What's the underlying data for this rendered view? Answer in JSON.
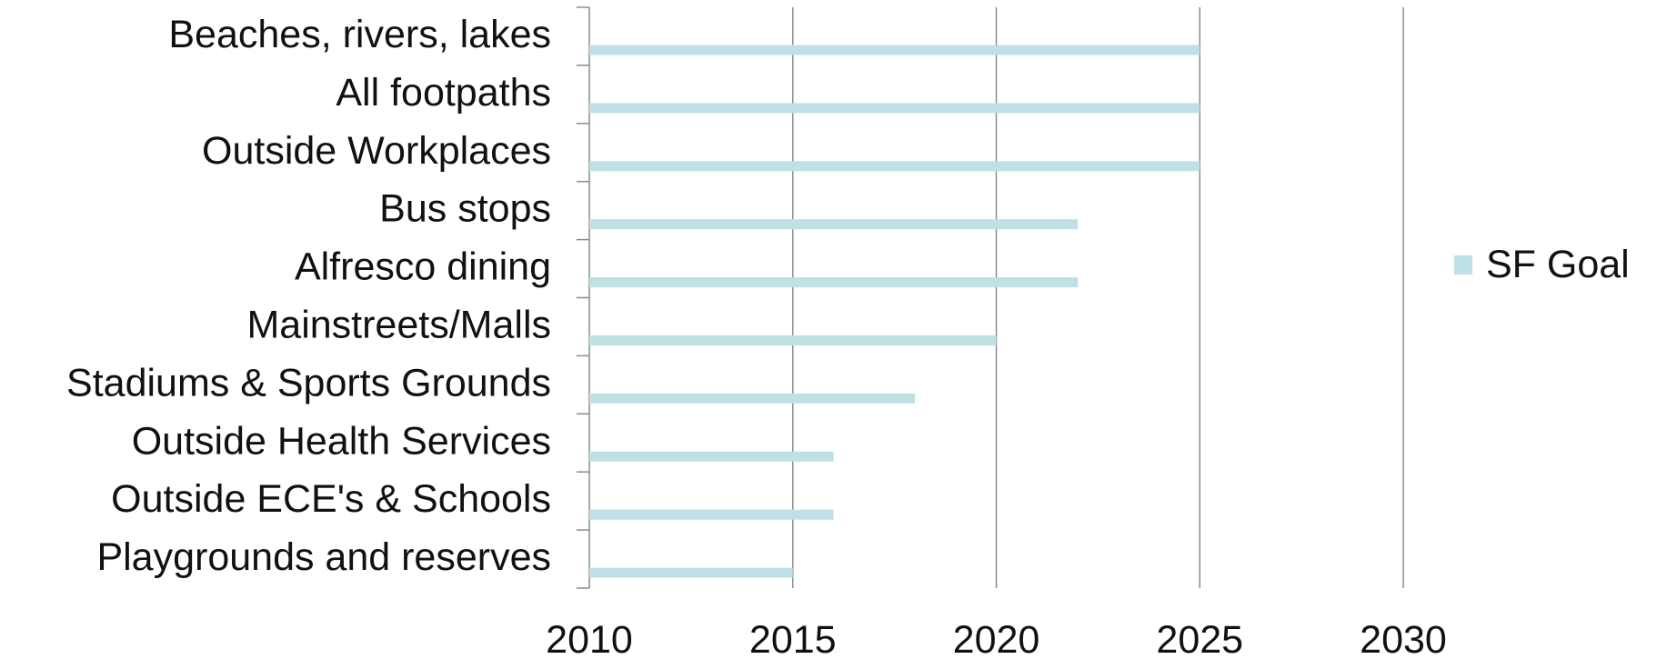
{
  "chart_data": {
    "type": "bar",
    "orientation": "horizontal",
    "categories": [
      "Beaches, rivers, lakes",
      "All footpaths",
      "Outside Workplaces",
      "Bus stops",
      "Alfresco dining",
      "Mainstreets/Malls",
      "Stadiums & Sports Grounds",
      "Outside Health Services",
      "Outside ECE's & Schools",
      "Playgrounds and reserves"
    ],
    "series": [
      {
        "name": "SF Goal",
        "color": "#bfe0e4",
        "values": [
          2025,
          2025,
          2025,
          2022,
          2022,
          2020,
          2018,
          2016,
          2016,
          2015
        ]
      }
    ],
    "xlim": [
      2010,
      2030
    ],
    "xticks": [
      "2010",
      "2015",
      "2020",
      "2025",
      "2030"
    ],
    "grid": "vertical",
    "legend_position": "right"
  }
}
